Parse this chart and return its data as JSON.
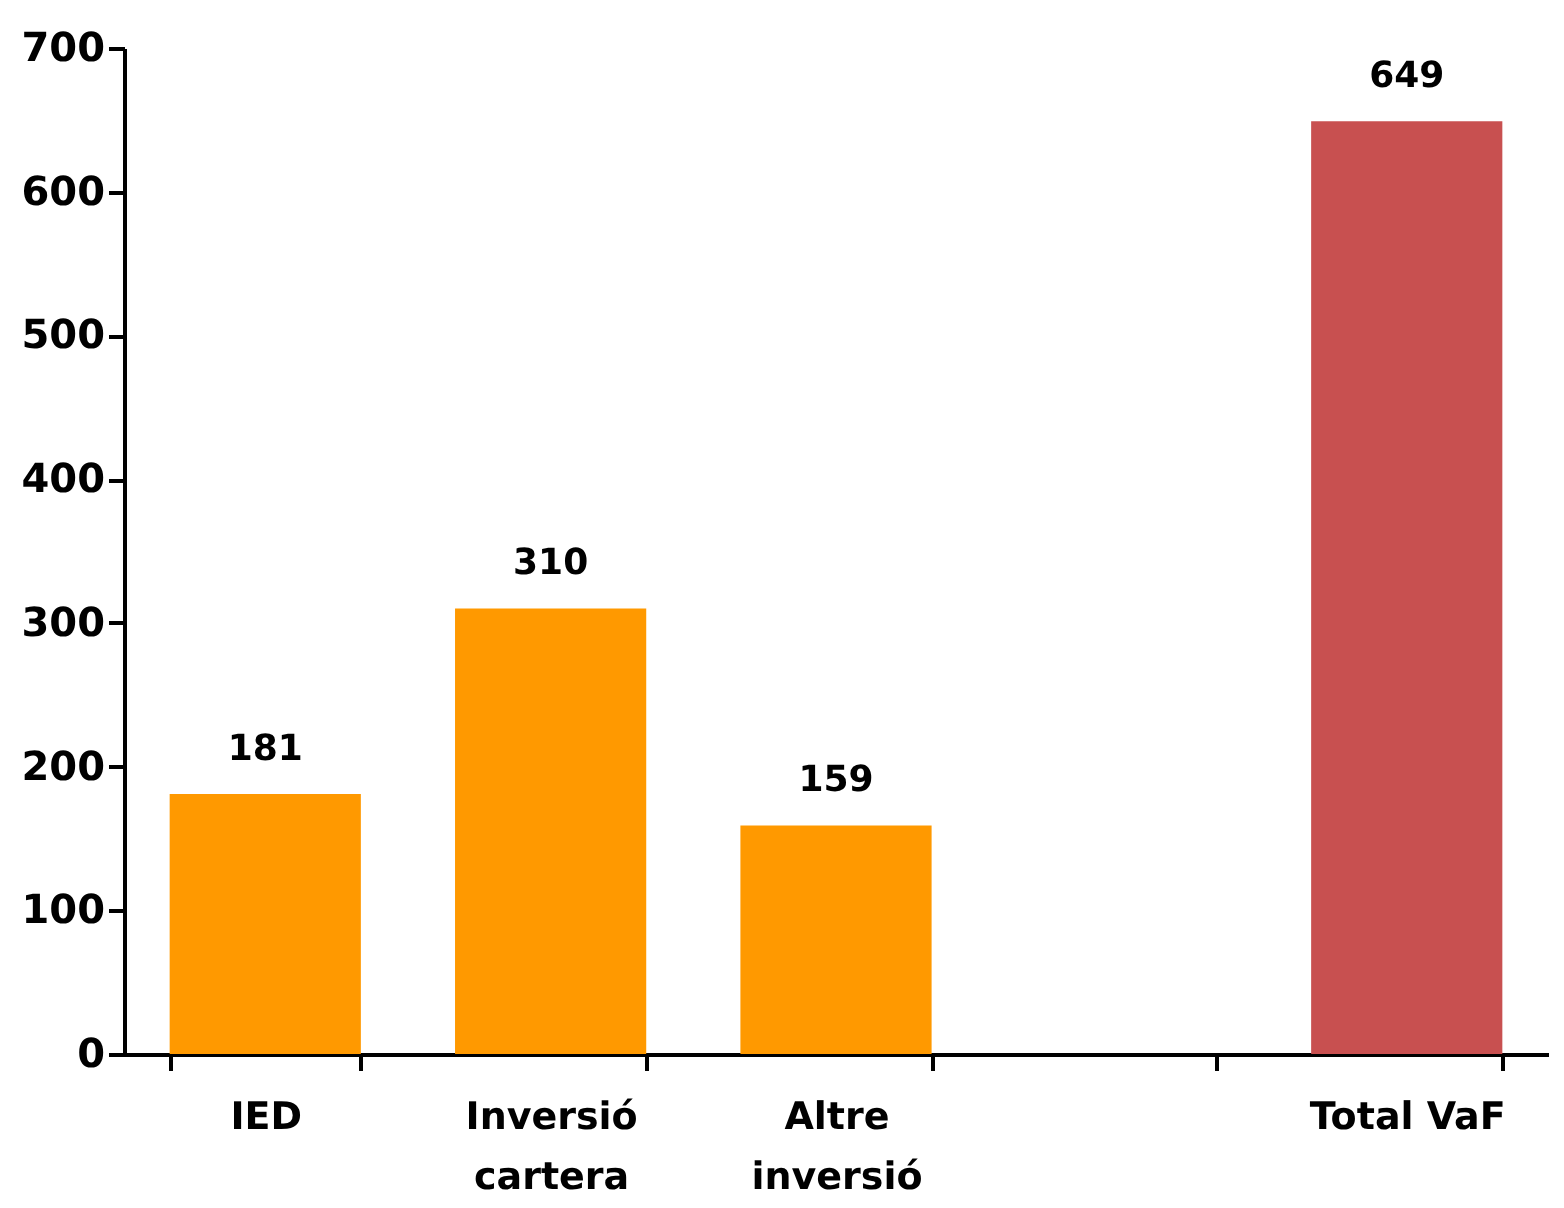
{
  "chart_data": {
    "type": "bar",
    "categories": [
      "IED",
      "Inversió cartera",
      "Altre inversió",
      null,
      "Total VaF"
    ],
    "values": [
      181,
      310,
      159,
      null,
      649
    ],
    "colors": [
      "#ff9900",
      "#ff9900",
      "#ff9900",
      null,
      "#c85050"
    ],
    "ylim": [
      0,
      700
    ],
    "yticks": [
      0,
      100,
      200,
      300,
      400,
      500,
      600,
      700
    ],
    "data_labels": true,
    "grid": false
  }
}
